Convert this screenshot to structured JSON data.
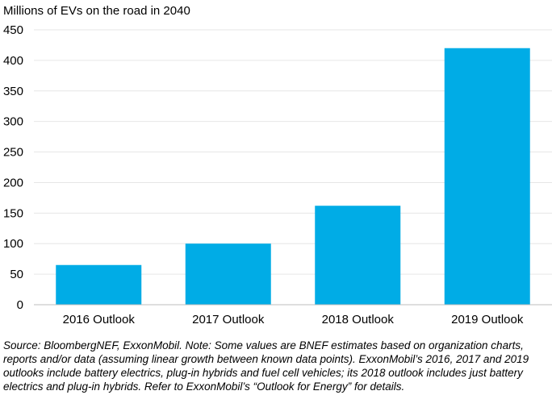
{
  "chart_data": {
    "type": "bar",
    "title": "",
    "ylabel": "Millions of EVs on the road in 2040",
    "xlabel": "",
    "categories": [
      "2016 Outlook",
      "2017 Outlook",
      "2018 Outlook",
      "2019 Outlook"
    ],
    "values": [
      65,
      100,
      162,
      420
    ],
    "ylim": [
      0,
      450
    ],
    "yticks": [
      0,
      50,
      100,
      150,
      200,
      250,
      300,
      350,
      400,
      450
    ],
    "bar_color": "#00ace6",
    "grid": "horizontal",
    "legend": "none"
  },
  "source_note": "Source: BloombergNEF, ExxonMobil. Note: Some values are BNEF estimates based on organization charts, reports and/or data (assuming linear growth between known data points). ExxonMobil’s 2016, 2017 and 2019 outlooks include battery electrics, plug-in hybrids and fuel cell vehicles; its 2018 outlook includes just battery electrics and plug-in hybrids. Refer to ExxonMobil’s “Outlook for Energy” for details."
}
